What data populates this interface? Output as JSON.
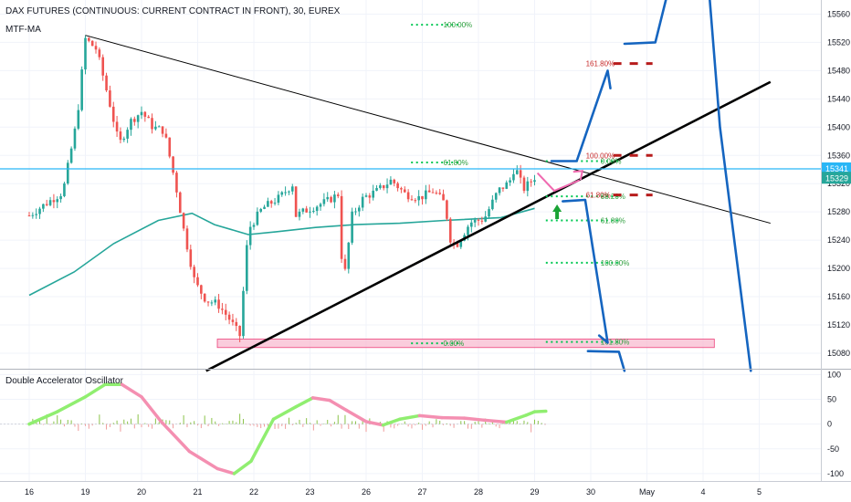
{
  "header": {
    "symbol_title": "DAX FUTURES (CONTINUOUS: CURRENT CONTRACT IN FRONT), 30, EUREX",
    "indicator_label": "MTF-MA"
  },
  "oscillator": {
    "title": "Double Accelerator Oscillator",
    "ticks": [
      100,
      50,
      0,
      -50,
      -100
    ],
    "ylim": [
      -115,
      110
    ]
  },
  "colors": {
    "up_candle": "#26a69a",
    "down_candle": "#ef5350",
    "ma_line": "#26a69a",
    "price_line": "#29b6f6",
    "projection": "#1565c0",
    "fib_green": "#00c853",
    "fib_red": "#b71c1c",
    "zone_fill": "#f8bbd0",
    "osc_up": "#90ee70",
    "osc_down": "#f48fb1"
  },
  "chart_data": {
    "type": "candlestick",
    "price_axis": {
      "ticks": [
        15560,
        15520,
        15480,
        15440,
        15400,
        15360,
        15320,
        15280,
        15240,
        15200,
        15160,
        15120,
        15080
      ],
      "ylim": [
        15058,
        15580
      ],
      "last_price": 15329,
      "line_price": 15341
    },
    "time_axis": {
      "labels": [
        "16",
        "19",
        "20",
        "21",
        "22",
        "23",
        "26",
        "27",
        "28",
        "29",
        "30",
        "May",
        "4",
        "5"
      ],
      "label_slots": [
        0,
        1,
        2,
        3,
        4,
        5,
        6,
        7,
        8,
        9,
        10,
        11,
        12,
        13
      ]
    },
    "price_path": [
      [
        0,
        15275
      ],
      [
        0.3,
        15292
      ],
      [
        0.6,
        15308
      ],
      [
        0.85,
        15410
      ],
      [
        1.0,
        15525
      ],
      [
        1.2,
        15510
      ],
      [
        1.45,
        15428
      ],
      [
        1.6,
        15375
      ],
      [
        1.8,
        15408
      ],
      [
        2.0,
        15422
      ],
      [
        2.2,
        15400
      ],
      [
        2.4,
        15395
      ],
      [
        2.6,
        15322
      ],
      [
        2.75,
        15255
      ],
      [
        2.95,
        15180
      ],
      [
        3.15,
        15155
      ],
      [
        3.35,
        15150
      ],
      [
        3.55,
        15130
      ],
      [
        3.75,
        15105
      ],
      [
        3.9,
        15255
      ],
      [
        4.15,
        15285
      ],
      [
        4.45,
        15300
      ],
      [
        4.7,
        15320
      ],
      [
        4.75,
        15275
      ],
      [
        5.0,
        15285
      ],
      [
        5.3,
        15295
      ],
      [
        5.5,
        15305
      ],
      [
        5.55,
        15230
      ],
      [
        5.6,
        15180
      ],
      [
        5.75,
        15275
      ],
      [
        5.95,
        15300
      ],
      [
        6.2,
        15310
      ],
      [
        6.45,
        15325
      ],
      [
        6.7,
        15305
      ],
      [
        6.95,
        15300
      ],
      [
        7.2,
        15310
      ],
      [
        7.4,
        15292
      ],
      [
        7.5,
        15242
      ],
      [
        7.6,
        15232
      ],
      [
        7.85,
        15265
      ],
      [
        8.1,
        15270
      ],
      [
        8.35,
        15310
      ],
      [
        8.55,
        15322
      ],
      [
        8.65,
        15345
      ],
      [
        8.8,
        15312
      ],
      [
        9.0,
        15329
      ]
    ],
    "moving_average": [
      [
        0,
        15162
      ],
      [
        0.8,
        15195
      ],
      [
        1.5,
        15235
      ],
      [
        2.3,
        15268
      ],
      [
        2.9,
        15278
      ],
      [
        3.3,
        15262
      ],
      [
        3.9,
        15248
      ],
      [
        4.4,
        15252
      ],
      [
        5.1,
        15258
      ],
      [
        5.8,
        15262
      ],
      [
        6.6,
        15264
      ],
      [
        7.4,
        15268
      ],
      [
        8.4,
        15272
      ],
      [
        9.0,
        15285
      ]
    ],
    "trendlines": [
      {
        "name": "descending",
        "from": [
          1.0,
          15530
        ],
        "to": [
          13.2,
          15264
        ],
        "style": "thin"
      },
      {
        "name": "ascending",
        "from": [
          3.15,
          15055
        ],
        "to": [
          13.2,
          15464
        ],
        "style": "thick"
      }
    ],
    "support_zone": {
      "x_from": 3.35,
      "x_to": 12.2,
      "price_from": 15088,
      "price_to": 15100
    },
    "fib_levels": [
      {
        "label": "100.00%",
        "x_from": 6.8,
        "x_to": 7.7,
        "price": 15545,
        "color": "green"
      },
      {
        "label": "61.80%",
        "x_from": 6.8,
        "x_to": 7.7,
        "price": 15350,
        "color": "green"
      },
      {
        "label": "0.00%",
        "x_from": 6.8,
        "x_to": 7.7,
        "price": 15094,
        "color": "green"
      },
      {
        "label": "0.00%",
        "x_from": 9.2,
        "x_to": 10.5,
        "price": 15352,
        "color": "green"
      },
      {
        "label": "38.20%",
        "x_from": 9.2,
        "x_to": 10.5,
        "price": 15302,
        "color": "green"
      },
      {
        "label": "61.80%",
        "x_from": 9.2,
        "x_to": 10.5,
        "price": 15268,
        "color": "green"
      },
      {
        "label": "100.00%",
        "x_from": 9.2,
        "x_to": 10.5,
        "price": 15208,
        "color": "green"
      },
      {
        "label": "161.80%",
        "x_from": 9.2,
        "x_to": 10.5,
        "price": 15096,
        "color": "green"
      },
      {
        "label": "161.80%",
        "x_from": 10.4,
        "x_to": 11.1,
        "price": 15490,
        "color": "red"
      },
      {
        "label": "100.00%",
        "x_from": 10.4,
        "x_to": 11.1,
        "price": 15360,
        "color": "red"
      },
      {
        "label": "61.80%",
        "x_from": 10.4,
        "x_to": 11.1,
        "price": 15304,
        "color": "red"
      }
    ],
    "projections": [
      {
        "name": "up-scenario",
        "points": [
          [
            9.3,
            15352
          ],
          [
            9.75,
            15352
          ],
          [
            10.3,
            15480
          ],
          [
            10.35,
            15455
          ]
        ]
      },
      {
        "name": "down-scenario",
        "points": [
          [
            9.5,
            15295
          ],
          [
            9.9,
            15297
          ],
          [
            10.3,
            15095
          ],
          [
            10.15,
            15105
          ]
        ]
      },
      {
        "name": "far-high-1",
        "points": [
          [
            10.6,
            15518
          ],
          [
            11.15,
            15520
          ],
          [
            11.4,
            15600
          ]
        ]
      },
      {
        "name": "far-high-2",
        "points": [
          [
            12.1,
            15600
          ],
          [
            12.3,
            15400
          ],
          [
            12.85,
            15055
          ]
        ]
      },
      {
        "name": "far-low",
        "points": [
          [
            9.95,
            15083
          ],
          [
            10.5,
            15082
          ],
          [
            10.6,
            15055
          ]
        ]
      }
    ],
    "up_arrow": {
      "x": 9.4,
      "price": 15275
    },
    "pink_arrow": {
      "points": [
        [
          9.05,
          15335
        ],
        [
          9.35,
          15310
        ],
        [
          9.8,
          15325
        ]
      ],
      "tip": [
        9.85,
        15338
      ]
    },
    "oscillator_path": [
      [
        0,
        0
      ],
      [
        0.5,
        25
      ],
      [
        1.0,
        55
      ],
      [
        1.35,
        80
      ],
      [
        1.65,
        80
      ],
      [
        2.0,
        55
      ],
      [
        2.35,
        5
      ],
      [
        2.85,
        -55
      ],
      [
        3.35,
        -90
      ],
      [
        3.65,
        -100
      ],
      [
        3.95,
        -75
      ],
      [
        4.35,
        10
      ],
      [
        4.75,
        35
      ],
      [
        5.05,
        53
      ],
      [
        5.35,
        48
      ],
      [
        5.65,
        28
      ],
      [
        6.0,
        5
      ],
      [
        6.3,
        -2
      ],
      [
        6.6,
        10
      ],
      [
        6.95,
        17
      ],
      [
        7.35,
        13
      ],
      [
        7.75,
        12
      ],
      [
        8.1,
        8
      ],
      [
        8.5,
        4
      ],
      [
        8.85,
        18
      ],
      [
        9.0,
        25
      ],
      [
        9.2,
        26
      ]
    ]
  }
}
